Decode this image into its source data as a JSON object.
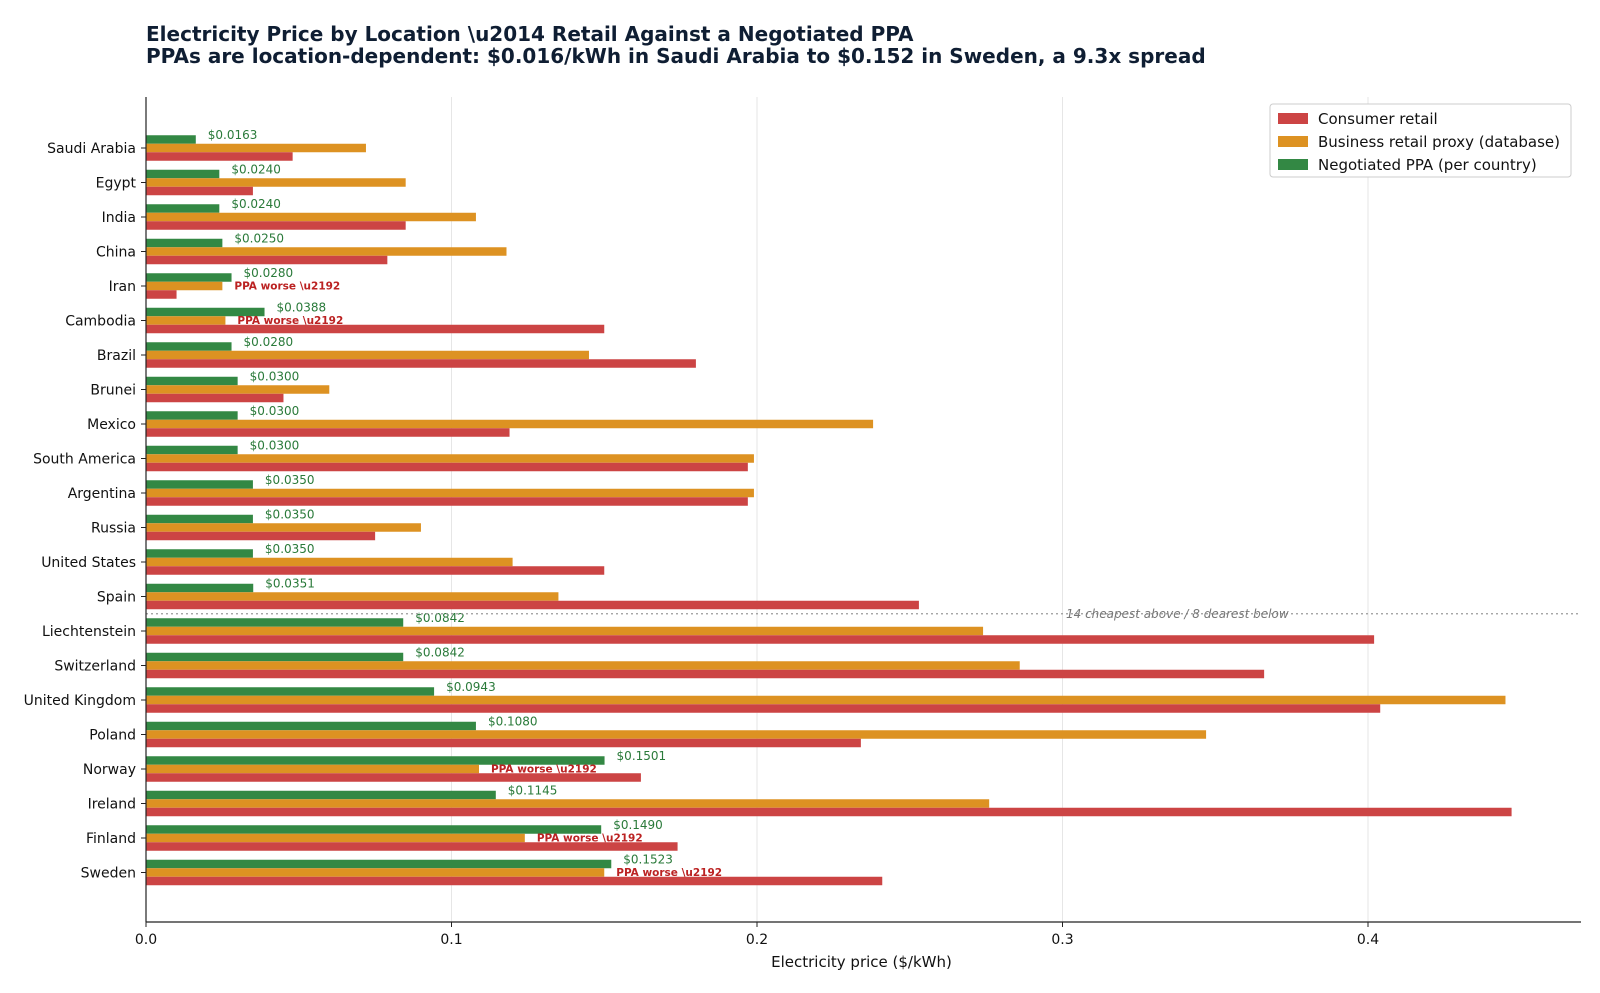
{
  "chart_data": {
    "type": "bar",
    "orientation": "horizontal",
    "title": "Electricity Price by Location \\u2014 Retail Against a Negotiated PPA",
    "subtitle": "PPAs are location-dependent: $0.016/kWh in Saudi Arabia to $0.152 in Sweden, a 9.3x spread",
    "xlabel": "Electricity price ($/kWh)",
    "ylabel": "",
    "xlim": [
      0,
      0.47
    ],
    "xticks": [
      "0.0",
      "0.1",
      "0.2",
      "0.3",
      "0.4"
    ],
    "grid": "vertical",
    "legend_position": "top-right",
    "categories": [
      "Saudi Arabia",
      "Egypt",
      "India",
      "China",
      "Iran",
      "Cambodia",
      "Brazil",
      "Brunei",
      "Mexico",
      "South America",
      "Argentina",
      "Russia",
      "United States",
      "Spain",
      "Liechtenstein",
      "Switzerland",
      "United Kingdom",
      "Poland",
      "Norway",
      "Ireland",
      "Finland",
      "Sweden"
    ],
    "series": [
      {
        "name": "Consumer retail",
        "color": "#cc4444",
        "values": [
          0.048,
          0.035,
          0.085,
          0.079,
          0.01,
          0.15,
          0.18,
          0.045,
          0.119,
          0.197,
          0.197,
          0.075,
          0.15,
          0.253,
          0.402,
          0.366,
          0.404,
          0.234,
          0.162,
          0.447,
          0.174,
          0.241
        ]
      },
      {
        "name": "Business retail proxy (database)",
        "color": "#dd9222",
        "values": [
          0.072,
          0.085,
          0.108,
          0.118,
          0.025,
          0.026,
          0.145,
          0.06,
          0.238,
          0.199,
          0.199,
          0.09,
          0.12,
          0.135,
          0.274,
          0.286,
          0.445,
          0.347,
          0.109,
          0.276,
          0.124,
          0.15
        ]
      },
      {
        "name": "Negotiated PPA (per country)",
        "color": "#338844",
        "values": [
          0.0163,
          0.024,
          0.024,
          0.025,
          0.028,
          0.0388,
          0.028,
          0.03,
          0.03,
          0.03,
          0.035,
          0.035,
          0.035,
          0.0351,
          0.0842,
          0.0842,
          0.0943,
          0.108,
          0.1501,
          0.1145,
          0.149,
          0.1523
        ]
      }
    ],
    "ppa_labels": [
      "$0.0163",
      "$0.0240",
      "$0.0240",
      "$0.0250",
      "$0.0280",
      "$0.0388",
      "$0.0280",
      "$0.0300",
      "$0.0300",
      "$0.0300",
      "$0.0350",
      "$0.0350",
      "$0.0350",
      "$0.0351",
      "$0.0842",
      "$0.0842",
      "$0.0943",
      "$0.1080",
      "$0.1501",
      "$0.1145",
      "$0.1490",
      "$0.1523"
    ],
    "worse_label": "PPA worse \\u2192",
    "ppa_worse_rows": [
      "Iran",
      "Cambodia",
      "Norway",
      "Finland",
      "Sweden"
    ],
    "divider_label": "14 cheapest above / 8 dearest below",
    "divider_after": "Spain",
    "ppa_label_color": "#2a7a3a",
    "worse_label_color": "#bb2222"
  }
}
